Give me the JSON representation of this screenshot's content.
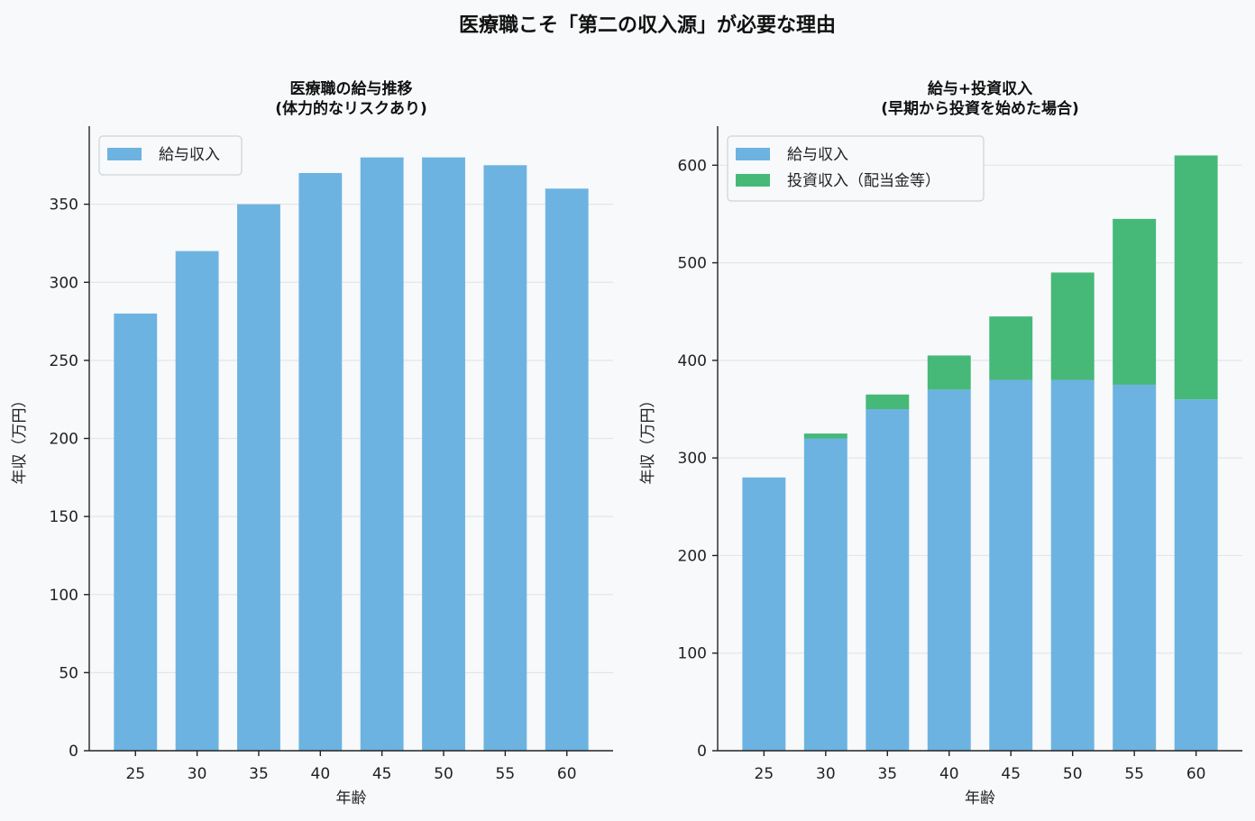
{
  "figure": {
    "title": "医療職こそ「第二の収入源」が必要な理由"
  },
  "chart_data": [
    {
      "type": "bar",
      "title_lines": [
        "医療職の給与推移",
        "(体力的なリスクあり)"
      ],
      "xlabel": "年齢",
      "ylabel": "年収（万円）",
      "categories": [
        "25",
        "30",
        "35",
        "40",
        "45",
        "50",
        "55",
        "60"
      ],
      "series": [
        {
          "name": "給与収入",
          "color": "#6db3e1",
          "values": [
            280,
            320,
            350,
            370,
            380,
            380,
            375,
            360
          ]
        }
      ],
      "ylim": [
        0,
        400
      ],
      "yticks": [
        0,
        50,
        100,
        150,
        200,
        250,
        300,
        350
      ],
      "grid": "horizontal",
      "legend_position": "top-left",
      "stacked": false
    },
    {
      "type": "bar",
      "title_lines": [
        "給与+投資収入",
        "(早期から投資を始めた場合)"
      ],
      "xlabel": "年齢",
      "ylabel": "年収（万円）",
      "categories": [
        "25",
        "30",
        "35",
        "40",
        "45",
        "50",
        "55",
        "60"
      ],
      "series": [
        {
          "name": "給与収入",
          "color": "#6db3e1",
          "values": [
            280,
            320,
            350,
            370,
            380,
            380,
            375,
            360
          ]
        },
        {
          "name": "投資収入（配当金等）",
          "color": "#46b978",
          "values": [
            0,
            5,
            15,
            35,
            65,
            110,
            170,
            250
          ]
        }
      ],
      "ylim": [
        0,
        640
      ],
      "yticks": [
        0,
        100,
        200,
        300,
        400,
        500,
        600
      ],
      "grid": "horizontal",
      "legend_position": "top-left",
      "stacked": true
    }
  ]
}
